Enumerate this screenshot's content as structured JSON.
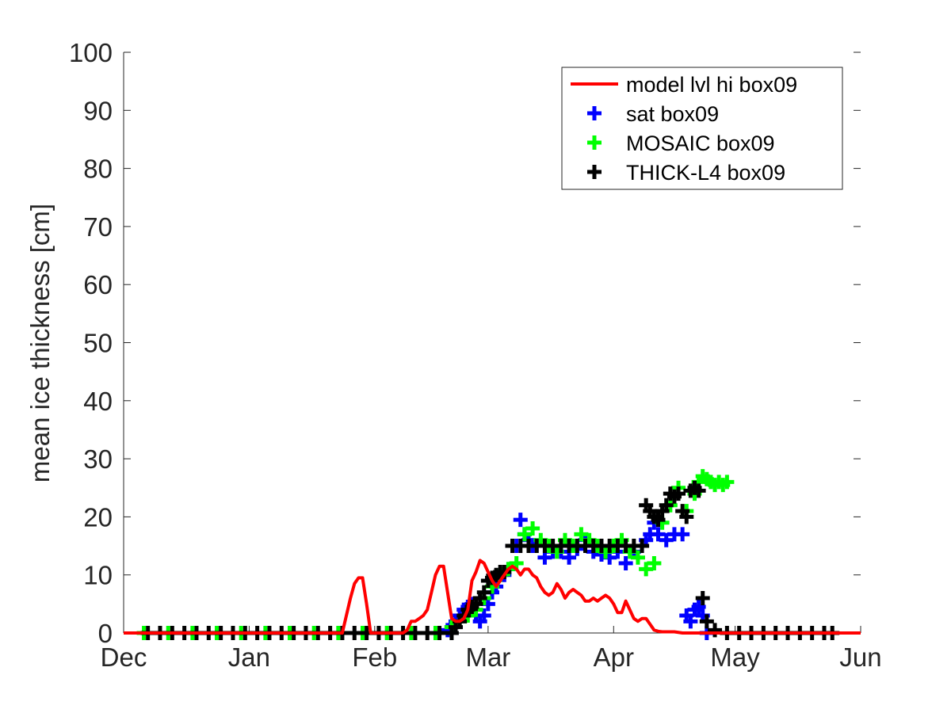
{
  "chart_data": {
    "type": "line",
    "title": "",
    "xlabel": "",
    "ylabel": "mean ice thickness [cm]",
    "xlim": [
      "Dec 1",
      "Jun 1"
    ],
    "ylim": [
      0,
      100
    ],
    "grid": false,
    "legend_position": "top-right",
    "x_ticks": [
      "Dec",
      "Jan",
      "Feb",
      "Mar",
      "Apr",
      "May",
      "Jun"
    ],
    "y_ticks": [
      0,
      10,
      20,
      30,
      40,
      50,
      60,
      70,
      80,
      90,
      100
    ],
    "series": [
      {
        "name": "model lvl hi box09",
        "kind": "line",
        "color": "#ff0000",
        "x": [
          "Dec 1",
          "Jan 1",
          "Jan 15",
          "Jan 20",
          "Jan 22",
          "Jan 24",
          "Jan 26",
          "Jan 27",
          "Jan 28",
          "Jan 29",
          "Jan 30",
          "Jan 31",
          "Feb 1",
          "Feb 2",
          "Feb 3",
          "Feb 4",
          "Feb 5",
          "Feb 6",
          "Feb 7",
          "Feb 8",
          "Feb 9",
          "Feb 10",
          "Feb 11",
          "Feb 12",
          "Feb 13",
          "Feb 14",
          "Feb 15",
          "Feb 16",
          "Feb 17",
          "Feb 18",
          "Feb 19",
          "Feb 20",
          "Feb 21",
          "Feb 22",
          "Feb 23",
          "Feb 24",
          "Feb 25",
          "Feb 26",
          "Feb 27",
          "Feb 28",
          "Mar 1",
          "Mar 2",
          "Mar 3",
          "Mar 4",
          "Mar 5",
          "Mar 6",
          "Mar 7",
          "Mar 8",
          "Mar 9",
          "Mar 10",
          "Mar 11",
          "Mar 12",
          "Mar 13",
          "Mar 14",
          "Mar 15",
          "Mar 16",
          "Mar 17",
          "Mar 18",
          "Mar 19",
          "Mar 20",
          "Mar 21",
          "Mar 22",
          "Mar 23",
          "Mar 24",
          "Mar 25",
          "Mar 26",
          "Mar 27",
          "Mar 28",
          "Mar 29",
          "Mar 30",
          "Mar 31",
          "Apr 1",
          "Apr 2",
          "Apr 3",
          "Apr 4",
          "Apr 5",
          "Apr 6",
          "Apr 7",
          "Apr 8",
          "Apr 9",
          "Apr 10",
          "Apr 11",
          "Apr 12",
          "Apr 13",
          "Apr 14",
          "Apr 16",
          "Apr 18",
          "Apr 20",
          "Apr 22",
          "Apr 24",
          "Apr 26",
          "May 1",
          "May 15",
          "Jun 1"
        ],
        "y": [
          0,
          0,
          0,
          0,
          0,
          0,
          6,
          8.5,
          9.5,
          9.5,
          5,
          0,
          0,
          0,
          0,
          0,
          0,
          0,
          0,
          0,
          0.5,
          2,
          2,
          2.5,
          3,
          4,
          7,
          10,
          11.5,
          11.5,
          7,
          2.5,
          2,
          2,
          2.5,
          4,
          9,
          10.5,
          12.5,
          12,
          10.5,
          9,
          8,
          9,
          10,
          11,
          11.5,
          11,
          10,
          11,
          11,
          10,
          9.5,
          8,
          7,
          6.5,
          7,
          8.5,
          7.5,
          6,
          7,
          7.5,
          7,
          6.5,
          5.5,
          5.5,
          6,
          5.5,
          6,
          6.5,
          6,
          5,
          3.5,
          3.5,
          5.5,
          4,
          2.5,
          2,
          2.5,
          2.5,
          1.5,
          0.5,
          0.3,
          0.2,
          0.2,
          0.2,
          0,
          0,
          0,
          0,
          0,
          0,
          0,
          0
        ]
      },
      {
        "name": "sat box09",
        "kind": "markers",
        "color": "#0000ff",
        "x": [
          "Feb 19",
          "Feb 20",
          "Feb 21",
          "Feb 22",
          "Feb 23",
          "Feb 24",
          "Feb 25",
          "Feb 26",
          "Feb 27",
          "Feb 28",
          "Mar 1",
          "Mar 2",
          "Mar 3",
          "Mar 4",
          "Mar 5",
          "Mar 6",
          "Mar 7",
          "Mar 8",
          "Mar 9",
          "Mar 10",
          "Mar 11",
          "Mar 12",
          "Mar 13",
          "Mar 15",
          "Mar 17",
          "Mar 19",
          "Mar 21",
          "Mar 23",
          "Mar 25",
          "Mar 27",
          "Mar 29",
          "Mar 31",
          "Apr 2",
          "Apr 4",
          "Apr 6",
          "Apr 8",
          "Apr 9",
          "Apr 10",
          "Apr 11",
          "Apr 12",
          "Apr 14",
          "Apr 16",
          "Apr 18",
          "Apr 19",
          "Apr 20",
          "Apr 21",
          "Apr 22",
          "Apr 23",
          "Apr 24"
        ],
        "y": [
          0.5,
          1,
          2,
          3,
          4,
          4.5,
          5,
          3,
          2,
          3,
          5,
          7,
          8,
          10,
          10,
          11,
          15,
          15,
          19.5,
          17,
          16,
          15,
          15,
          13,
          14,
          14,
          13,
          14.5,
          16,
          14,
          13.5,
          13,
          14,
          12,
          14,
          15,
          16,
          17,
          19,
          17,
          16,
          17,
          17,
          3,
          2,
          4,
          4.5,
          3,
          0
        ]
      },
      {
        "name": "MOSAIC box09",
        "kind": "markers",
        "color": "#00ff00",
        "x": [
          "Dec 6",
          "Dec 12",
          "Dec 18",
          "Dec 24",
          "Dec 30",
          "Jan 5",
          "Jan 11",
          "Jan 17",
          "Jan 23",
          "Jan 29",
          "Feb 4",
          "Feb 10",
          "Feb 16",
          "Feb 20",
          "Feb 22",
          "Feb 24",
          "Feb 26",
          "Feb 28",
          "Mar 2",
          "Mar 4",
          "Mar 6",
          "Mar 8",
          "Mar 10",
          "Mar 12",
          "Mar 14",
          "Mar 16",
          "Mar 18",
          "Mar 20",
          "Mar 22",
          "Mar 24",
          "Mar 26",
          "Mar 28",
          "Mar 30",
          "Apr 1",
          "Apr 3",
          "Apr 5",
          "Apr 7",
          "Apr 9",
          "Apr 11",
          "Apr 13",
          "Apr 15",
          "Apr 17",
          "Apr 19",
          "Apr 21",
          "Apr 22",
          "Apr 23",
          "Apr 24",
          "Apr 25",
          "Apr 26",
          "Apr 27",
          "Apr 28",
          "Apr 29"
        ],
        "y": [
          0,
          0,
          0,
          0,
          0,
          0,
          0,
          0,
          0,
          0,
          0,
          0,
          0,
          1,
          2,
          3,
          4,
          6,
          8,
          10,
          11,
          12,
          17,
          18,
          16,
          15,
          14,
          16,
          15,
          17,
          16,
          15,
          14,
          15,
          16,
          14,
          13,
          11,
          12,
          19,
          22,
          25,
          21,
          24,
          26,
          27,
          26.5,
          26,
          25.5,
          26,
          25.5,
          26
        ]
      },
      {
        "name": "THICK-L4 box09",
        "kind": "markers",
        "color": "#000000",
        "x": [
          "Dec 7",
          "Dec 10",
          "Dec 13",
          "Dec 16",
          "Dec 19",
          "Dec 22",
          "Dec 25",
          "Dec 28",
          "Dec 31",
          "Jan 3",
          "Jan 6",
          "Jan 9",
          "Jan 12",
          "Jan 15",
          "Jan 18",
          "Jan 21",
          "Jan 24",
          "Jan 27",
          "Jan 30",
          "Feb 2",
          "Feb 5",
          "Feb 8",
          "Feb 11",
          "Feb 14",
          "Feb 17",
          "Feb 20",
          "Feb 21",
          "Feb 22",
          "Feb 23",
          "Feb 24",
          "Feb 25",
          "Feb 26",
          "Feb 27",
          "Feb 28",
          "Mar 1",
          "Mar 2",
          "Mar 3",
          "Mar 4",
          "Mar 5",
          "Mar 7",
          "Mar 9",
          "Mar 11",
          "Mar 13",
          "Mar 15",
          "Mar 17",
          "Mar 19",
          "Mar 21",
          "Mar 23",
          "Mar 25",
          "Mar 27",
          "Mar 29",
          "Mar 31",
          "Apr 2",
          "Apr 4",
          "Apr 6",
          "Apr 8",
          "Apr 9",
          "Apr 10",
          "Apr 11",
          "Apr 12",
          "Apr 13",
          "Apr 14",
          "Apr 15",
          "Apr 16",
          "Apr 17",
          "Apr 18",
          "Apr 19",
          "Apr 20",
          "Apr 21",
          "Apr 22",
          "Apr 23",
          "Apr 24",
          "Apr 26",
          "Apr 29",
          "May 2",
          "May 5",
          "May 8",
          "May 11",
          "May 14",
          "May 17",
          "May 20",
          "May 23",
          "May 25"
        ],
        "y": [
          0,
          0,
          0,
          0,
          0,
          0,
          0,
          0,
          0,
          0,
          0,
          0,
          0,
          0,
          0,
          0,
          0,
          0,
          0,
          0,
          0,
          0,
          0,
          0,
          0,
          0,
          1,
          2,
          3,
          4,
          4.5,
          5,
          6,
          7,
          9,
          9.5,
          10,
          10.5,
          10.5,
          15,
          15,
          15,
          15,
          15,
          15,
          15,
          15,
          15,
          15,
          15,
          15,
          15,
          15,
          15,
          15,
          15,
          22,
          21,
          20,
          19.5,
          21,
          22,
          24,
          23.5,
          24,
          21,
          20,
          24.5,
          25,
          24.5,
          6,
          2,
          0.5,
          0,
          0,
          0,
          0,
          0,
          0,
          0,
          0,
          0,
          0
        ]
      }
    ]
  }
}
